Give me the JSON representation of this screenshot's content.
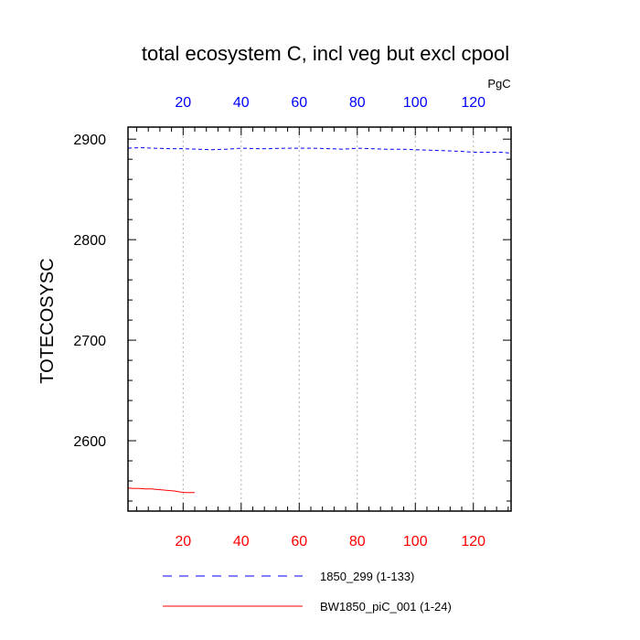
{
  "chart_data": {
    "type": "line",
    "title": "total ecosystem C, incl veg but excl cpool",
    "ylabel": "TOTECOSYSC",
    "top_axis_unit": "PgC",
    "xlim": [
      1,
      133
    ],
    "ylim": [
      2530,
      2912
    ],
    "yticks_major": [
      2600,
      2700,
      2800,
      2900
    ],
    "yticks_minor_step": 20,
    "xticks_major": [
      20,
      40,
      60,
      80,
      100,
      120
    ],
    "xticks_minor_step": 4,
    "bottom_tick_color": "#ff0000",
    "top_tick_color": "#0000ff",
    "grid": "vertical-dotted",
    "legend_position": "bottom",
    "series": [
      {
        "name": "1850_299 (1-133)",
        "color": "#0000ff",
        "style": "dashed",
        "x": [
          1,
          5,
          10,
          15,
          20,
          25,
          30,
          35,
          40,
          45,
          50,
          55,
          60,
          65,
          70,
          75,
          80,
          85,
          90,
          95,
          100,
          105,
          110,
          115,
          120,
          125,
          130,
          133
        ],
        "y": [
          2891,
          2891.5,
          2891,
          2890.5,
          2890.5,
          2890,
          2889.5,
          2890,
          2891,
          2890.5,
          2890.5,
          2891,
          2891,
          2891,
          2890.5,
          2890,
          2891,
          2890.5,
          2890,
          2890,
          2889.5,
          2889,
          2888.5,
          2888,
          2887,
          2887,
          2887,
          2886
        ]
      },
      {
        "name": "BW1850_piC_001 (1-24)",
        "color": "#ff0000",
        "style": "solid",
        "x": [
          1,
          3,
          5,
          7,
          9,
          11,
          13,
          15,
          17,
          19,
          21,
          24
        ],
        "y": [
          2553,
          2552.5,
          2552.5,
          2552,
          2552,
          2551.5,
          2551,
          2550.5,
          2550,
          2549,
          2548.5,
          2548.5
        ]
      }
    ]
  }
}
